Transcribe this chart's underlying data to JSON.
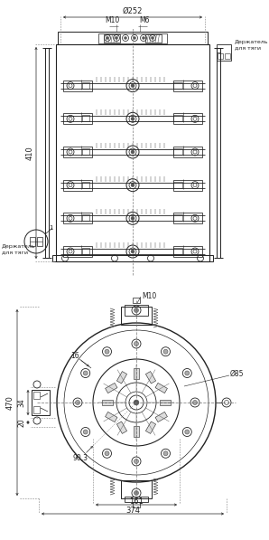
{
  "bg_color": "#ffffff",
  "line_color": "#222222",
  "dim_color": "#222222",
  "fig_width": 2.98,
  "fig_height": 5.97,
  "dpi": 100,
  "labels": {
    "dim_252": "Ø252",
    "dim_410": "410",
    "dim_M10_top": "M10",
    "dim_M6": "M6",
    "holder_right": "Держатель\nдля тяги",
    "holder_left": "Держатель\nдля тяги",
    "label_1": "1",
    "dim_374": "374",
    "dim_161": "161",
    "dim_470": "470",
    "dim_34": "34",
    "dim_16": "16",
    "dim_20": "20",
    "dim_90_3": "90,3",
    "dim_85": "Ø85",
    "dim_M10_bot": "M10"
  }
}
